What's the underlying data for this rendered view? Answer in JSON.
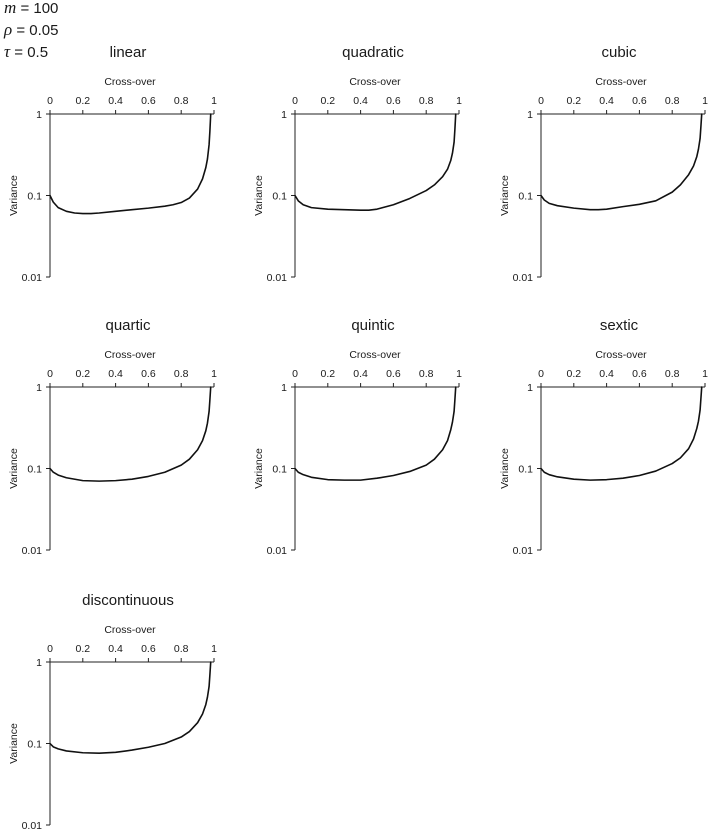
{
  "params": [
    {
      "symbol": "m",
      "text": " = 100"
    },
    {
      "symbol": "ρ",
      "text": " = 0.05"
    },
    {
      "symbol": "τ",
      "text": " = 0.5"
    }
  ],
  "chart_data": [
    {
      "type": "line",
      "title": "linear",
      "xlabel": "Cross-over",
      "ylabel": "Variance",
      "xlim": [
        0,
        1
      ],
      "ylim": [
        0.01,
        1
      ],
      "y_scale": "log",
      "x_ticks": [
        "0",
        "0.2",
        "0.4",
        "0.6",
        "0.8",
        "1"
      ],
      "y_ticks": [
        "1",
        "0.1",
        "0.01"
      ],
      "series": [
        {
          "x": [
            0,
            0.02,
            0.05,
            0.1,
            0.15,
            0.2,
            0.25,
            0.3,
            0.4,
            0.5,
            0.6,
            0.7,
            0.75,
            0.8,
            0.85,
            0.9,
            0.93,
            0.95,
            0.96,
            0.97,
            0.975,
            0.98
          ],
          "y": [
            0.1,
            0.083,
            0.071,
            0.064,
            0.061,
            0.06,
            0.06,
            0.061,
            0.064,
            0.067,
            0.07,
            0.074,
            0.077,
            0.082,
            0.093,
            0.12,
            0.16,
            0.22,
            0.28,
            0.42,
            0.62,
            1.0
          ]
        }
      ]
    },
    {
      "type": "line",
      "title": "quadratic",
      "xlabel": "Cross-over",
      "ylabel": "Variance",
      "xlim": [
        0,
        1
      ],
      "ylim": [
        0.01,
        1
      ],
      "y_scale": "log",
      "x_ticks": [
        "0",
        "0.2",
        "0.4",
        "0.6",
        "0.8",
        "1"
      ],
      "y_ticks": [
        "1",
        "0.1",
        "0.01"
      ],
      "series": [
        {
          "x": [
            0,
            0.02,
            0.05,
            0.1,
            0.2,
            0.3,
            0.4,
            0.45,
            0.5,
            0.6,
            0.7,
            0.8,
            0.85,
            0.9,
            0.93,
            0.95,
            0.96,
            0.97,
            0.975,
            0.98
          ],
          "y": [
            0.1,
            0.086,
            0.077,
            0.071,
            0.068,
            0.067,
            0.066,
            0.066,
            0.068,
            0.077,
            0.092,
            0.115,
            0.135,
            0.17,
            0.21,
            0.27,
            0.33,
            0.45,
            0.65,
            1.0
          ]
        }
      ]
    },
    {
      "type": "line",
      "title": "cubic",
      "xlabel": "Cross-over",
      "ylabel": "Variance",
      "xlim": [
        0,
        1
      ],
      "ylim": [
        0.01,
        1
      ],
      "y_scale": "log",
      "x_ticks": [
        "0",
        "0.2",
        "0.4",
        "0.6",
        "0.8",
        "1"
      ],
      "y_ticks": [
        "1",
        "0.1",
        "0.01"
      ],
      "series": [
        {
          "x": [
            0,
            0.02,
            0.05,
            0.1,
            0.2,
            0.3,
            0.35,
            0.4,
            0.5,
            0.6,
            0.7,
            0.8,
            0.85,
            0.9,
            0.93,
            0.95,
            0.96,
            0.97,
            0.975,
            0.98
          ],
          "y": [
            0.1,
            0.088,
            0.08,
            0.075,
            0.07,
            0.067,
            0.067,
            0.068,
            0.073,
            0.078,
            0.086,
            0.11,
            0.135,
            0.18,
            0.23,
            0.3,
            0.37,
            0.5,
            0.7,
            1.0
          ]
        }
      ]
    },
    {
      "type": "line",
      "title": "quartic",
      "xlabel": "Cross-over",
      "ylabel": "Variance",
      "xlim": [
        0,
        1
      ],
      "ylim": [
        0.01,
        1
      ],
      "y_scale": "log",
      "x_ticks": [
        "0",
        "0.2",
        "0.4",
        "0.6",
        "0.8",
        "1"
      ],
      "y_ticks": [
        "1",
        "0.1",
        "0.01"
      ],
      "series": [
        {
          "x": [
            0,
            0.02,
            0.05,
            0.1,
            0.2,
            0.3,
            0.4,
            0.5,
            0.6,
            0.7,
            0.8,
            0.85,
            0.9,
            0.93,
            0.95,
            0.96,
            0.97,
            0.975,
            0.98
          ],
          "y": [
            0.1,
            0.09,
            0.083,
            0.077,
            0.071,
            0.07,
            0.071,
            0.074,
            0.08,
            0.09,
            0.11,
            0.13,
            0.17,
            0.22,
            0.29,
            0.36,
            0.5,
            0.7,
            1.0
          ]
        }
      ]
    },
    {
      "type": "line",
      "title": "quintic",
      "xlabel": "Cross-over",
      "ylabel": "Variance",
      "xlim": [
        0,
        1
      ],
      "ylim": [
        0.01,
        1
      ],
      "y_scale": "log",
      "x_ticks": [
        "0",
        "0.2",
        "0.4",
        "0.6",
        "0.8",
        "1"
      ],
      "y_ticks": [
        "1",
        "0.1",
        "0.01"
      ],
      "series": [
        {
          "x": [
            0,
            0.02,
            0.05,
            0.1,
            0.2,
            0.3,
            0.4,
            0.5,
            0.6,
            0.7,
            0.8,
            0.85,
            0.9,
            0.93,
            0.95,
            0.96,
            0.97,
            0.975,
            0.98
          ],
          "y": [
            0.1,
            0.09,
            0.084,
            0.078,
            0.073,
            0.072,
            0.072,
            0.076,
            0.082,
            0.092,
            0.11,
            0.13,
            0.17,
            0.22,
            0.3,
            0.37,
            0.5,
            0.7,
            1.0
          ]
        }
      ]
    },
    {
      "type": "line",
      "title": "sextic",
      "xlabel": "Cross-over",
      "ylabel": "Variance",
      "xlim": [
        0,
        1
      ],
      "ylim": [
        0.01,
        1
      ],
      "y_scale": "log",
      "x_ticks": [
        "0",
        "0.2",
        "0.4",
        "0.6",
        "0.8",
        "1"
      ],
      "y_ticks": [
        "1",
        "0.1",
        "0.01"
      ],
      "series": [
        {
          "x": [
            0,
            0.02,
            0.05,
            0.1,
            0.2,
            0.3,
            0.4,
            0.5,
            0.6,
            0.7,
            0.8,
            0.85,
            0.9,
            0.93,
            0.95,
            0.96,
            0.97,
            0.975,
            0.98
          ],
          "y": [
            0.1,
            0.09,
            0.084,
            0.079,
            0.074,
            0.072,
            0.073,
            0.076,
            0.082,
            0.093,
            0.115,
            0.135,
            0.175,
            0.23,
            0.31,
            0.38,
            0.52,
            0.72,
            1.0
          ]
        }
      ]
    },
    {
      "type": "line",
      "title": "discontinuous",
      "xlabel": "Cross-over",
      "ylabel": "Variance",
      "xlim": [
        0,
        1
      ],
      "ylim": [
        0.01,
        1
      ],
      "y_scale": "log",
      "x_ticks": [
        "0",
        "0.2",
        "0.4",
        "0.6",
        "0.8",
        "1"
      ],
      "y_ticks": [
        "1",
        "0.1",
        "0.01"
      ],
      "series": [
        {
          "x": [
            0,
            0.02,
            0.05,
            0.1,
            0.2,
            0.3,
            0.4,
            0.5,
            0.6,
            0.7,
            0.8,
            0.85,
            0.9,
            0.93,
            0.95,
            0.96,
            0.97,
            0.975,
            0.98
          ],
          "y": [
            0.1,
            0.091,
            0.086,
            0.081,
            0.077,
            0.076,
            0.078,
            0.083,
            0.09,
            0.1,
            0.12,
            0.14,
            0.18,
            0.23,
            0.3,
            0.37,
            0.5,
            0.7,
            1.0
          ]
        }
      ]
    }
  ]
}
